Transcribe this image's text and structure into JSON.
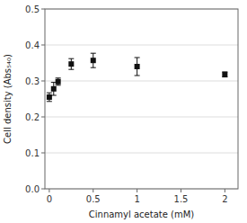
{
  "chart_data": {
    "type": "scatter",
    "x": [
      0,
      0.05,
      0.1,
      0.25,
      0.5,
      1,
      2
    ],
    "values": [
      0.255,
      0.278,
      0.298,
      0.347,
      0.357,
      0.34,
      0.318
    ],
    "yerr": [
      0.012,
      0.018,
      0.01,
      0.015,
      0.02,
      0.025,
      0.007
    ],
    "xlabel": "Cinnamyl acetate (mM)",
    "ylabel": "Cell density (Abs₅₄₀)",
    "xlim": [
      -0.05,
      2.15
    ],
    "ylim": [
      0,
      0.5
    ],
    "xticks": [
      0,
      0.5,
      1,
      1.5,
      2
    ],
    "yticks": [
      {
        "value": 0,
        "label": "0.0"
      },
      0.1,
      0.2,
      0.3,
      0.4,
      0.5
    ],
    "color": "#111111",
    "marker": "square",
    "grid": true
  }
}
